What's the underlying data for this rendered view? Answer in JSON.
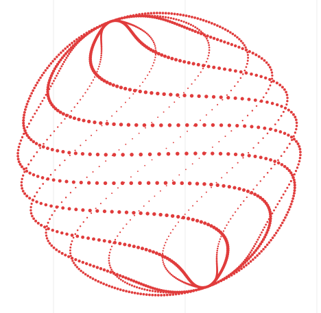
{
  "figure": {
    "type": "dotted-spiral-sphere",
    "dot_color": "#e03c3c",
    "background_color": "#ffffff",
    "gridline_color": "#eeeeee",
    "strand_count": 10,
    "twist": "wavy-diagonal"
  }
}
